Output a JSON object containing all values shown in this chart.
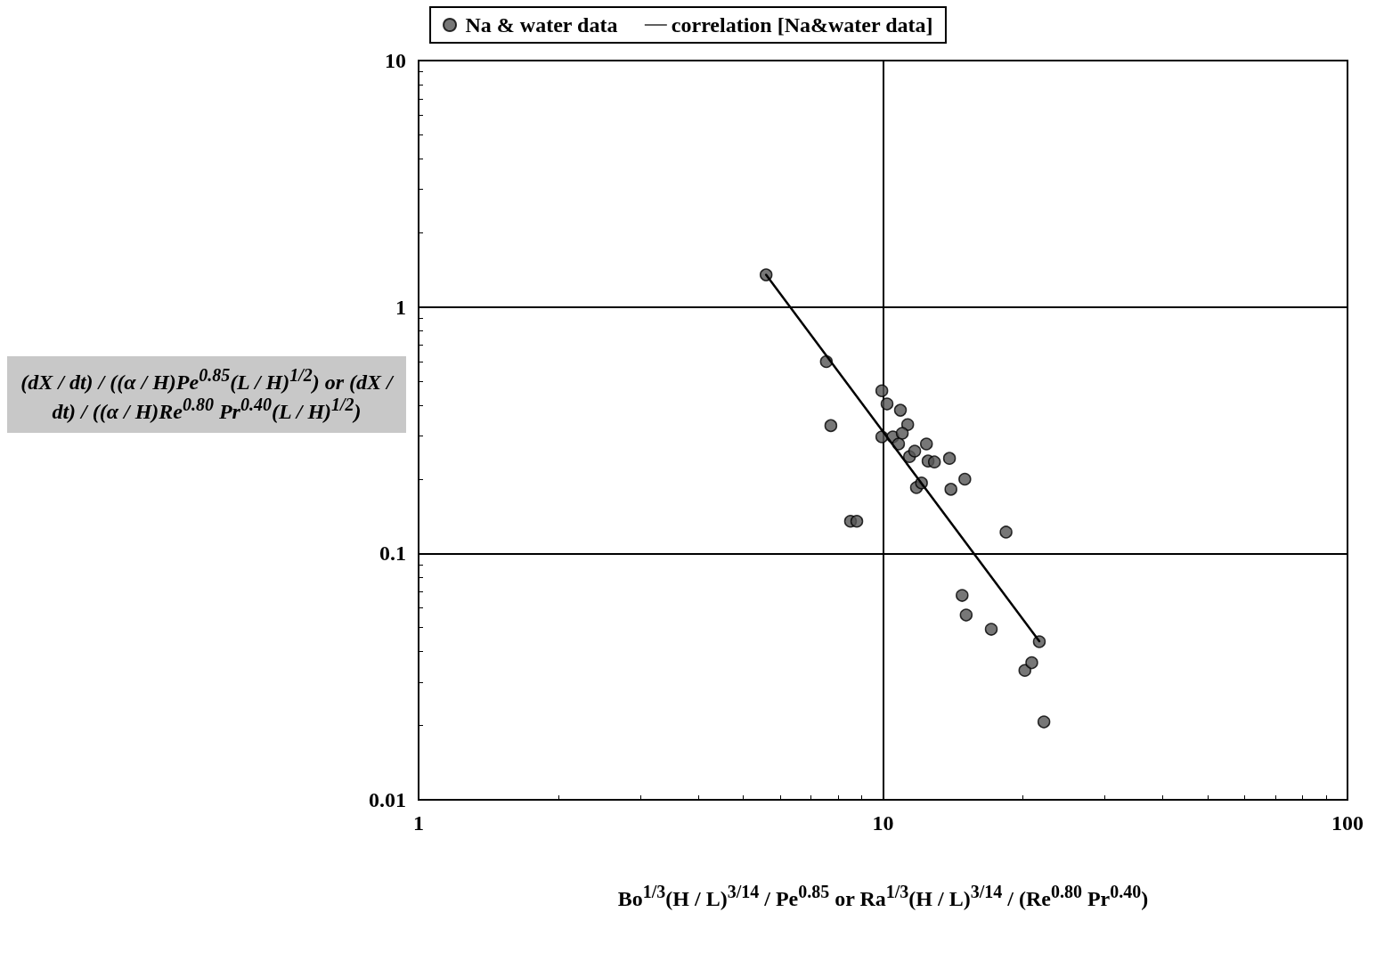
{
  "chart_data": {
    "type": "scatter",
    "xlabel": "Bo$^{1/3}$(H / L)$^{3/14}$ / Pe$^{0.85}$  or  Ra$^{1/3}$(H / L)$^{3/14}$ / (Re$^{0.80}$ Pr$^{0.40}$)",
    "ylabel": "(dX / dt) / ((α / H)Pe$^{0.85}$(L / H)$^{1/2}$)  or  (dX / dt) / ((α / H)Re$^{0.80}$ Pr$^{0.40}$(L / H)$^{1/2}$)",
    "log": "xy",
    "xlim": [
      1,
      100
    ],
    "xticks": [
      1,
      10,
      100
    ],
    "ylim": [
      0.01,
      10
    ],
    "yticks": [
      0.01,
      0.1,
      1,
      10
    ],
    "grid": true,
    "legend": "top",
    "marker": "circle",
    "series": [
      {
        "name": "Na & water data",
        "color": "#555555",
        "x": [
          5.6,
          7.55,
          7.72,
          8.51,
          8.78,
          9.94,
          10.2,
          10.9,
          11.3,
          9.94,
          10.5,
          11.0,
          10.8,
          11.4,
          11.7,
          12.4,
          12.5,
          12.9,
          13.9,
          11.8,
          12.1,
          14.0,
          15.0,
          18.4,
          14.8,
          15.1,
          17.1,
          20.2,
          20.9,
          21.7,
          22.2
        ],
        "values": [
          1.35,
          0.6,
          0.33,
          0.135,
          0.135,
          0.457,
          0.404,
          0.381,
          0.333,
          0.297,
          0.297,
          0.307,
          0.278,
          0.247,
          0.26,
          0.278,
          0.237,
          0.235,
          0.243,
          0.185,
          0.193,
          0.182,
          0.2,
          0.122,
          0.0675,
          0.0562,
          0.0492,
          0.0335,
          0.036,
          0.0438,
          0.0207
        ]
      },
      {
        "name": "correlation [Na&water data]",
        "type": "line",
        "color": "#000000",
        "line_style": "solid",
        "marker": "none",
        "x": [
          5.6,
          21.7
        ],
        "values": [
          1.35,
          0.044
        ]
      }
    ]
  }
}
